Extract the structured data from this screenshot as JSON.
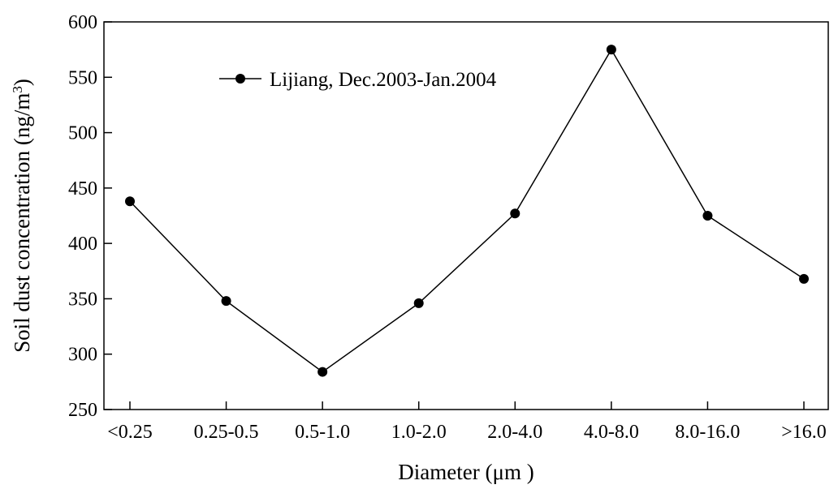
{
  "chart_data": {
    "type": "line",
    "categories": [
      "<0.25",
      "0.25-0.5",
      "0.5-1.0",
      "1.0-2.0",
      "2.0-4.0",
      "4.0-8.0",
      "8.0-16.0",
      ">16.0"
    ],
    "series": [
      {
        "name": "Lijiang, Dec.2003-Jan.2004",
        "values": [
          438,
          348,
          284,
          346,
          427,
          575,
          425,
          368
        ]
      }
    ],
    "xlabel": "Diameter (μm )",
    "ylabel": {
      "text": "Soil dust concentration (ng/m",
      "superscript": "3",
      "suffix": ")"
    },
    "ylim": [
      250,
      600
    ],
    "yticks": [
      250,
      300,
      350,
      400,
      450,
      500,
      550,
      600
    ],
    "yticklabels": [
      "250",
      "300",
      "350",
      "400",
      "450",
      "500",
      "550",
      "600"
    ],
    "grid": false,
    "legend_position": "top-left",
    "colors": {
      "line": "#000000",
      "marker": "#000000"
    }
  }
}
